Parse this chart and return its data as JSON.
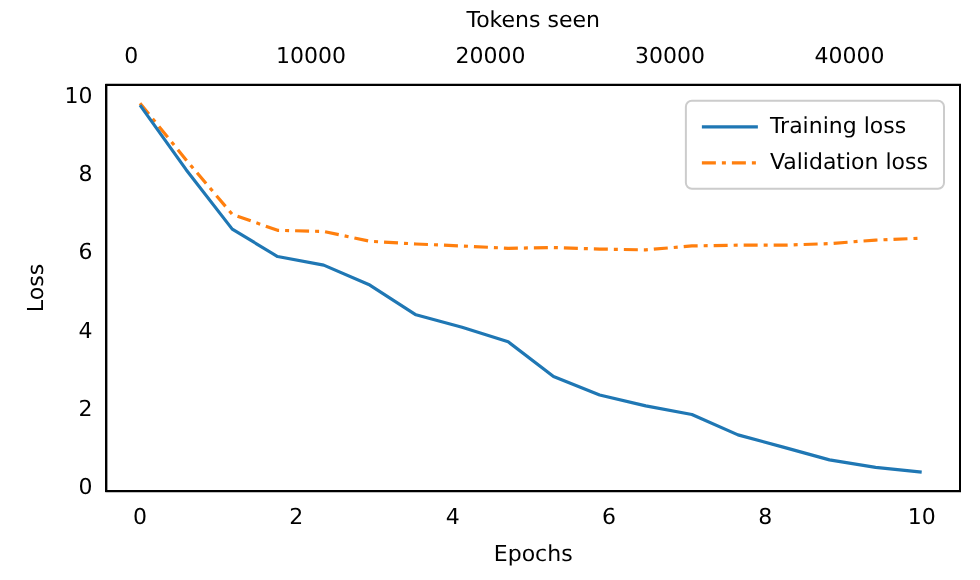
{
  "chart_data": {
    "type": "line",
    "xlabel": "Epochs",
    "ylabel": "Loss",
    "x2label": "Tokens seen",
    "x": [
      0,
      0.59,
      1.18,
      1.76,
      2.35,
      2.94,
      3.53,
      4.12,
      4.71,
      5.29,
      5.88,
      6.47,
      7.06,
      7.65,
      8.24,
      8.82,
      9.41,
      10
    ],
    "series": [
      {
        "name": "Training loss",
        "color": "#1f77b4",
        "line_style": "solid",
        "values": [
          9.8,
          8.15,
          6.63,
          5.93,
          5.71,
          5.2,
          4.44,
          4.12,
          3.75,
          2.86,
          2.39,
          2.11,
          1.89,
          1.37,
          1.05,
          0.73,
          0.54,
          0.42
        ]
      },
      {
        "name": "Validation loss",
        "color": "#ff7f0e",
        "line_style": "dashdot",
        "values": [
          9.85,
          8.4,
          7.01,
          6.6,
          6.57,
          6.32,
          6.25,
          6.2,
          6.14,
          6.16,
          6.12,
          6.1,
          6.2,
          6.22,
          6.22,
          6.26,
          6.35,
          6.4
        ]
      }
    ],
    "xlim": [
      -0.43,
      10.49
    ],
    "xticks": [
      0,
      2,
      4,
      6,
      8,
      10
    ],
    "ylim": [
      -0.07,
      10.32
    ],
    "yticks": [
      0,
      2,
      4,
      6,
      8,
      10
    ],
    "x2lim": [
      -1390,
      46150
    ],
    "x2ticks": [
      0,
      10000,
      20000,
      30000,
      40000
    ],
    "grid": false,
    "legend": "top right",
    "marker": "none"
  }
}
